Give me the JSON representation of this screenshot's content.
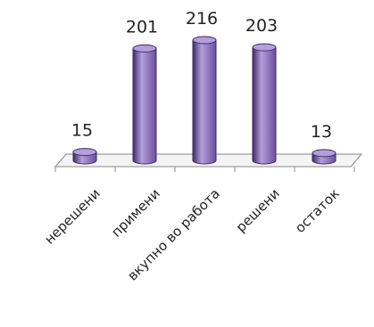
{
  "chart_data": {
    "type": "bar",
    "style": "3d-cylinder",
    "categories": [
      "нерешени",
      "примени",
      "вкупно во работа",
      "решени",
      "остаток"
    ],
    "values": [
      15,
      201,
      216,
      203,
      13
    ],
    "data_labels": [
      "15",
      "201",
      "216",
      "203",
      "13"
    ],
    "title": "",
    "xlabel": "",
    "ylabel": "",
    "ylim": [
      0,
      216
    ],
    "grid": false,
    "legend": "none",
    "colors": {
      "bar_side": "#6a4f9a",
      "bar_dark": "#3e2a66",
      "bar_top": "#b49fdb",
      "floor_fill": "#f4f4f4",
      "floor_line": "#8a8a8a"
    }
  }
}
